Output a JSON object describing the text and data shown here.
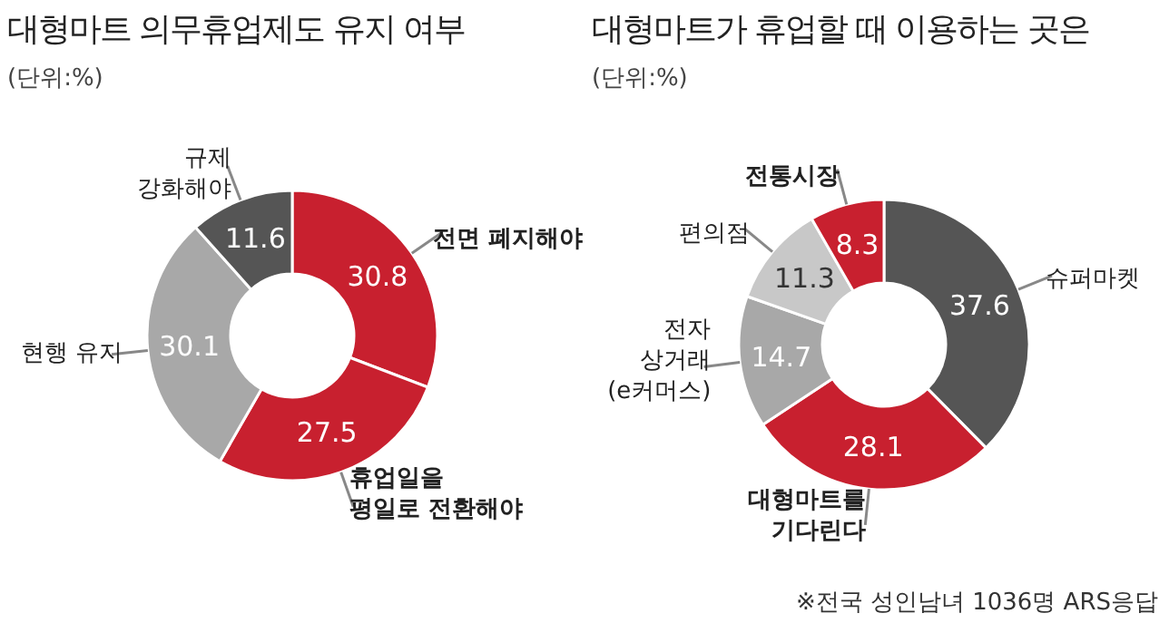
{
  "chart_data": [
    {
      "type": "donut",
      "title": "대형마트 의무휴업제도 유지 여부",
      "subtitle": "(단위:%)",
      "categories": [
        "전면 폐지해야",
        "휴업일을\n평일로 전환해야",
        "현행 유지",
        "규제\n강화해야"
      ],
      "values": [
        30.8,
        27.5,
        30.1,
        11.6
      ],
      "colors": [
        "#c8202f",
        "#c8202f",
        "#a8a8a8",
        "#555555"
      ],
      "data_labels": true
    },
    {
      "type": "donut",
      "title": "대형마트가 휴업할 때 이용하는 곳은",
      "subtitle": "(단위:%)",
      "categories": [
        "슈퍼마켓",
        "대형마트를\n기다린다",
        "전자\n상거래\n(e커머스)",
        "편의점",
        "전통시장"
      ],
      "values": [
        37.6,
        28.1,
        14.7,
        11.3,
        8.3
      ],
      "colors": [
        "#555555",
        "#c8202f",
        "#a8a8a8",
        "#c8c8c8",
        "#c8202f"
      ],
      "data_labels": true,
      "annotations": [
        "※전국 성인남녀 1036명 ARS응답"
      ]
    }
  ]
}
